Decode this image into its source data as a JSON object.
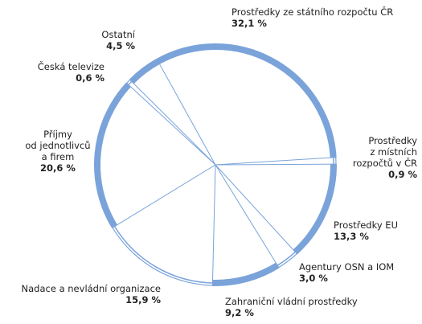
{
  "chart_data": {
    "type": "pie",
    "categories": [
      "Prostředky ze státního rozpočtu ČR",
      "Prostředky\nz místních\nrozpočtů v ČR",
      "Prostředky EU",
      "Agentury OSN a IOM",
      "Zahraniční vládní prostředky",
      "Nadace a nevládní organizace",
      "Příjmy\nod jednotlivců\na firem",
      "Česká televize",
      "Ostatní"
    ],
    "values": [
      32.1,
      0.9,
      13.3,
      3.0,
      9.2,
      15.9,
      20.6,
      0.6,
      4.5
    ],
    "value_labels": [
      "32,1 %",
      "0,9 %",
      "13,3 %",
      "3,0 %",
      "9,2 %",
      "15,9 %",
      "20,6 %",
      "0,6 %",
      "4,5 %"
    ],
    "color": "#7aa3da"
  }
}
